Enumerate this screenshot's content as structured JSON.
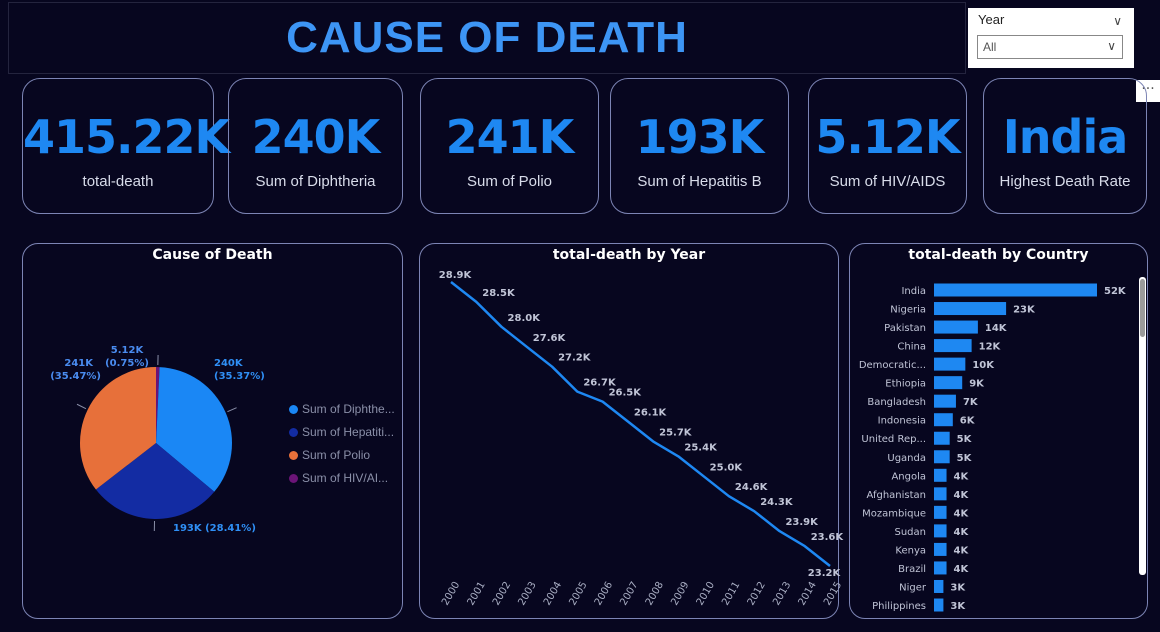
{
  "header": {
    "title": "CAUSE OF DEATH"
  },
  "slicer": {
    "label": "Year",
    "value": "All"
  },
  "cards": [
    {
      "value": "415.22K",
      "caption": "total-death"
    },
    {
      "value": "240K",
      "caption": "Sum of Diphtheria"
    },
    {
      "value": "241K",
      "caption": "Sum of Polio"
    },
    {
      "value": "193K",
      "caption": "Sum of Hepatitis B"
    },
    {
      "value": "5.12K",
      "caption": "Sum of  HIV/AIDS"
    },
    {
      "value": "India",
      "caption": "Highest Death Rate"
    }
  ],
  "colors": {
    "accent": "#3d95f5",
    "value": "#1e88f2",
    "background": "#07061f",
    "border": "#7c84b4"
  },
  "icons": {
    "more": "ellipsis-icon",
    "dropdown": "chevron-down-icon"
  },
  "chart_data": [
    {
      "type": "pie",
      "title": "Cause of Death",
      "slices": [
        {
          "name": "Sum of Diphthe...",
          "value": 240,
          "label": "240K (35.37%)",
          "color": "#1a87f5"
        },
        {
          "name": "Sum of Hepatiti...",
          "value": 193,
          "label": "193K (28.41%)",
          "color": "#132ca3"
        },
        {
          "name": "Sum of Polio",
          "value": 241,
          "label": "241K (35.47%)",
          "color": "#e7703a"
        },
        {
          "name": "Sum of  HIV/AI...",
          "value": 5.12,
          "label": "5.12K (0.75%)",
          "color": "#6b1477"
        }
      ]
    },
    {
      "type": "line",
      "title": "total-death by Year",
      "x": [
        "2000",
        "2001",
        "2002",
        "2003",
        "2004",
        "2005",
        "2006",
        "2007",
        "2008",
        "2009",
        "2010",
        "2011",
        "2012",
        "2013",
        "2014",
        "2015"
      ],
      "values": [
        28.9,
        28.5,
        28.0,
        27.6,
        27.2,
        26.7,
        26.5,
        26.1,
        25.7,
        25.4,
        25.0,
        24.6,
        24.3,
        23.9,
        23.6,
        23.2
      ],
      "labels": [
        "28.9K",
        "28.5K",
        "28.0K",
        "27.6K",
        "27.2K",
        "26.7K",
        "26.5K",
        "26.1K",
        "25.7K",
        "25.4K",
        "25.0K",
        "24.6K",
        "24.3K",
        "23.9K",
        "23.6K",
        "23.2K"
      ],
      "color": "#1e88f2"
    },
    {
      "type": "bar",
      "orientation": "horizontal",
      "title": "total-death by Country",
      "categories": [
        "India",
        "Nigeria",
        "Pakistan",
        "China",
        "Democratic...",
        "Ethiopia",
        "Bangladesh",
        "Indonesia",
        "United Rep...",
        "Uganda",
        "Angola",
        "Afghanistan",
        "Mozambique",
        "Sudan",
        "Kenya",
        "Brazil",
        "Niger",
        "Philippines"
      ],
      "values": [
        52,
        23,
        14,
        12,
        10,
        9,
        7,
        6,
        5,
        5,
        4,
        4,
        4,
        4,
        4,
        4,
        3,
        3
      ],
      "labels": [
        "52K",
        "23K",
        "14K",
        "12K",
        "10K",
        "9K",
        "7K",
        "6K",
        "5K",
        "5K",
        "4K",
        "4K",
        "4K",
        "4K",
        "4K",
        "4K",
        "3K",
        "3K"
      ],
      "color": "#1e88f2"
    }
  ]
}
